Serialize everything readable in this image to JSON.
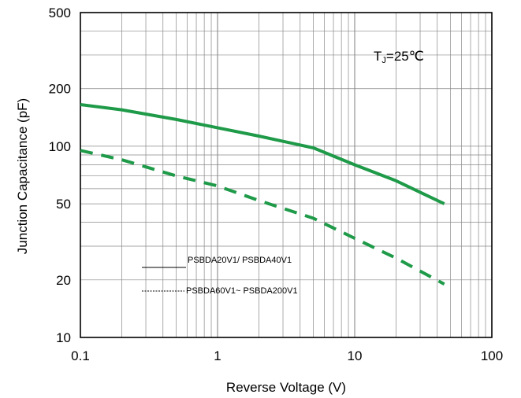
{
  "chart_data": {
    "type": "line",
    "xlabel": "Reverse Voltage (V)",
    "ylabel": "Junction Capacitance (pF)",
    "x_scale": "log",
    "y_scale": "log",
    "xlim": [
      0.1,
      100
    ],
    "ylim": [
      10,
      500
    ],
    "x_ticks": [
      "0.1",
      "1",
      "10",
      "100"
    ],
    "y_ticks": [
      "10",
      "20",
      "50",
      "100",
      "200",
      "500"
    ],
    "grid": true,
    "annotation": {
      "prefix": "T",
      "subscript": "J",
      "suffix": "=25℃"
    },
    "series": [
      {
        "name": "PSBDA20V1/ PSBDA40V1",
        "line_style": "solid",
        "color": "#1e9a48",
        "x": [
          0.1,
          0.2,
          0.5,
          1,
          2,
          5,
          10,
          20,
          45
        ],
        "y": [
          165,
          155,
          138,
          125,
          113,
          98,
          80,
          66,
          50
        ]
      },
      {
        "name": "PSBDA60V1~ PSBDA200V1",
        "line_style": "dashed",
        "color": "#1e9a48",
        "x": [
          0.1,
          0.2,
          0.5,
          1,
          2,
          5,
          10,
          20,
          45
        ],
        "y": [
          95,
          85,
          70,
          62,
          52,
          42,
          33,
          26,
          19
        ]
      }
    ],
    "legend": {
      "placement": "center-left",
      "entries": [
        {
          "label": "PSBDA20V1/ PSBDA40V1",
          "line_style": "solid",
          "color": "#000000"
        },
        {
          "label": "PSBDA60V1~ PSBDA200V1",
          "line_style": "dashed",
          "color": "#000000"
        }
      ]
    }
  }
}
